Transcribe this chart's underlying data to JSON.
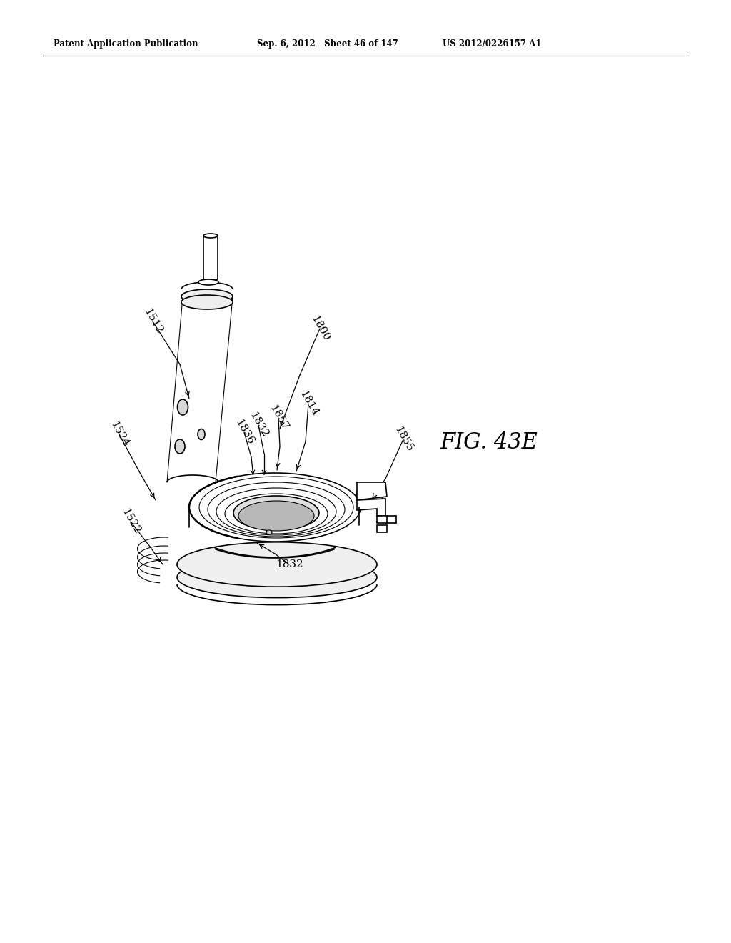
{
  "background_color": "#ffffff",
  "header_left": "Patent Application Publication",
  "header_center": "Sep. 6, 2012   Sheet 46 of 147",
  "header_right": "US 2012/0226157 A1",
  "figure_label": "FIG. 43E",
  "page_width": 10.24,
  "page_height": 13.2
}
